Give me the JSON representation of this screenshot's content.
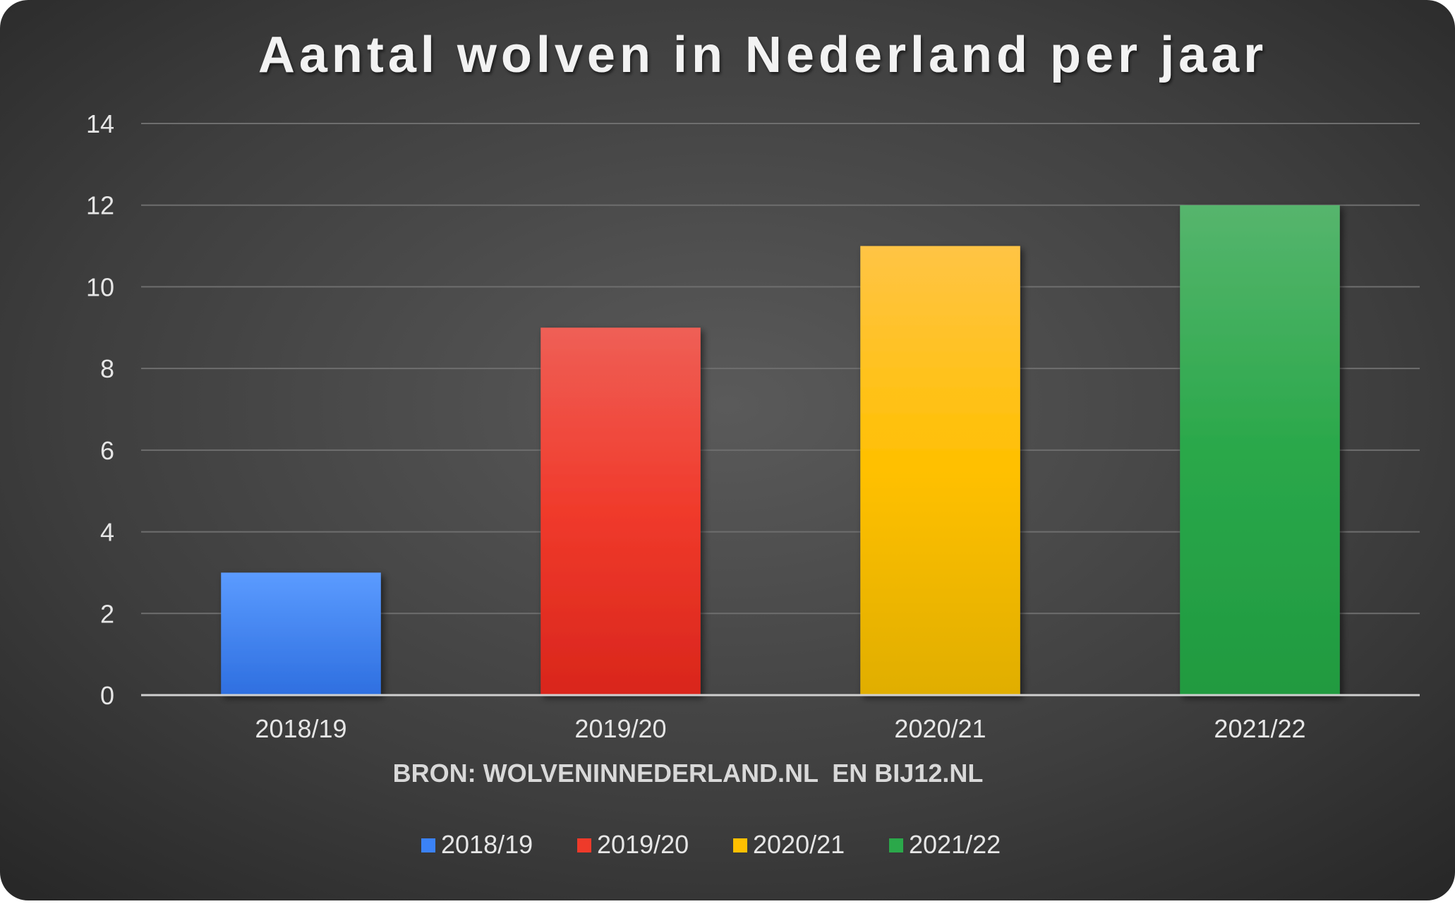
{
  "chart_data": {
    "type": "bar",
    "title": "Aantal wolven in Nederland per jaar",
    "xlabel": "BRON: WOLVENINNEDERLAND.NL  EN BIJ12.NL",
    "ylabel": "",
    "categories": [
      "2018/19",
      "2019/20",
      "2020/21",
      "2021/22"
    ],
    "series": [
      {
        "name": "2018/19",
        "values": [
          3,
          null,
          null,
          null
        ],
        "color": "#3b82f6"
      },
      {
        "name": "2019/20",
        "values": [
          null,
          9,
          null,
          null
        ],
        "color": "#ee3a2a"
      },
      {
        "name": "2020/21",
        "values": [
          null,
          null,
          11,
          null
        ],
        "color": "#ffc000"
      },
      {
        "name": "2021/22",
        "values": [
          null,
          null,
          null,
          12
        ],
        "color": "#2ba84a"
      }
    ],
    "values": [
      3,
      9,
      11,
      12
    ],
    "ylim": [
      0,
      14
    ],
    "yticks": [
      "0",
      "2",
      "4",
      "6",
      "8",
      "10",
      "12",
      "14"
    ],
    "grid": true,
    "legend": "bottom"
  }
}
